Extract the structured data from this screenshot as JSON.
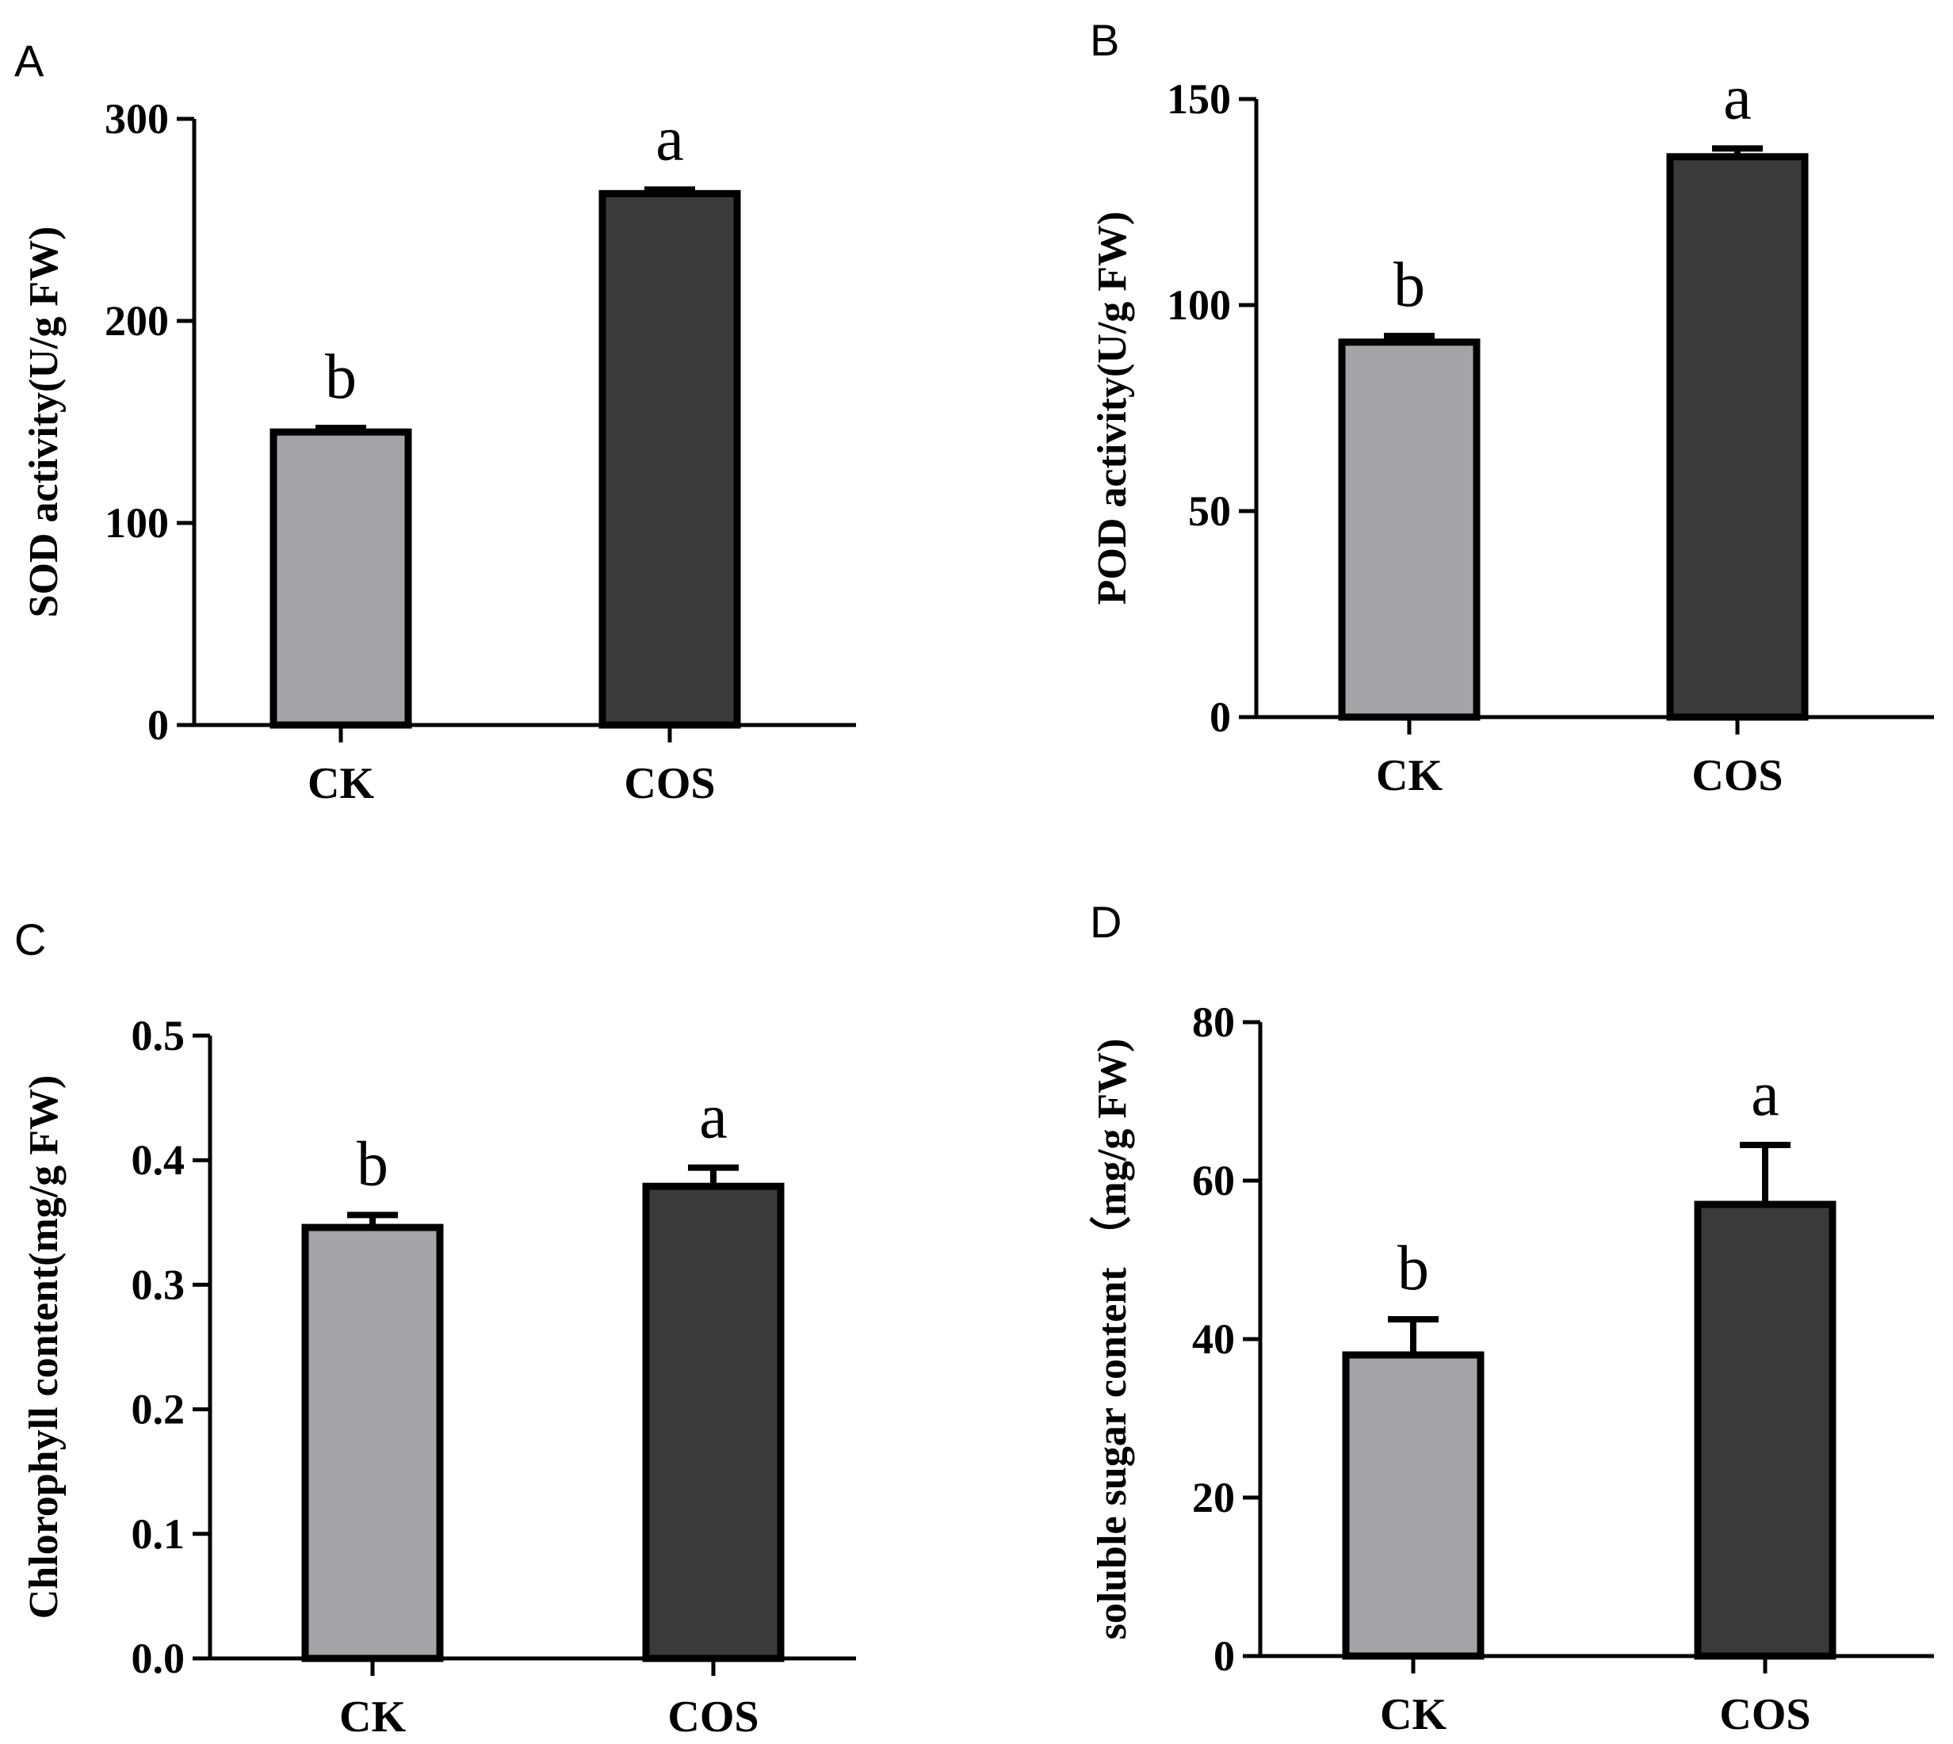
{
  "colors": {
    "ck_bar": "#a3a3a8",
    "cos_bar": "#3a3a3a",
    "stroke": "#000000"
  },
  "chart_data": [
    {
      "panel": "A",
      "type": "bar",
      "categories": [
        "CK",
        "COS"
      ],
      "values": [
        145,
        263
      ],
      "errors": [
        2,
        2
      ],
      "significance": [
        "b",
        "a"
      ],
      "ylabel": "SOD activity(U/g FW)",
      "xlabel": "",
      "ylim": [
        0,
        300
      ],
      "yticks": [
        0,
        100,
        200,
        300
      ],
      "ytick_labels": [
        "0",
        "100",
        "200",
        "300"
      ]
    },
    {
      "panel": "B",
      "type": "bar",
      "categories": [
        "CK",
        "COS"
      ],
      "values": [
        91,
        136
      ],
      "errors": [
        1.5,
        2
      ],
      "significance": [
        "b",
        "a"
      ],
      "ylabel": "POD activity(U/g FW)",
      "xlabel": "",
      "ylim": [
        0,
        150
      ],
      "yticks": [
        0,
        50,
        100,
        150
      ],
      "ytick_labels": [
        "0",
        "50",
        "100",
        "150"
      ]
    },
    {
      "panel": "C",
      "type": "bar",
      "categories": [
        "CK",
        "COS"
      ],
      "values": [
        0.346,
        0.379
      ],
      "errors": [
        0.01,
        0.015
      ],
      "significance": [
        "b",
        "a"
      ],
      "ylabel": "Chlorophyll content(mg/g FW)",
      "xlabel": "",
      "ylim": [
        0,
        0.5
      ],
      "yticks": [
        0,
        0.1,
        0.2,
        0.3,
        0.4,
        0.5
      ],
      "ytick_labels": [
        "0.0",
        "0.1",
        "0.2",
        "0.3",
        "0.4",
        "0.5"
      ]
    },
    {
      "panel": "D",
      "type": "bar",
      "categories": [
        "CK",
        "COS"
      ],
      "values": [
        38,
        57
      ],
      "errors": [
        4.5,
        7.5
      ],
      "significance": [
        "b",
        "a"
      ],
      "ylabel": "soluble sugar content （mg/g FW)",
      "xlabel": "",
      "ylim": [
        0,
        80
      ],
      "yticks": [
        0,
        20,
        40,
        60,
        80
      ],
      "ytick_labels": [
        "0",
        "20",
        "40",
        "60",
        "80"
      ]
    }
  ]
}
